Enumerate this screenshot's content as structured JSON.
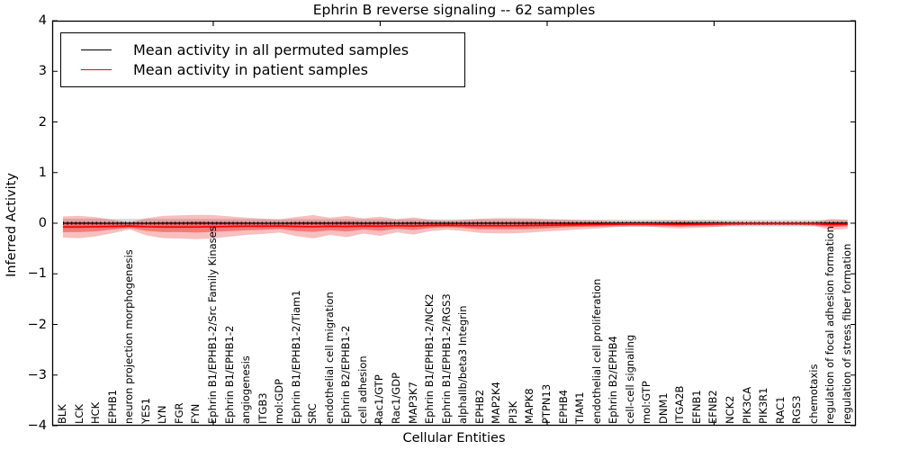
{
  "title": "Ephrin B reverse signaling -- 62 samples",
  "legend": {
    "entries": [
      {
        "label": "Mean activity in all permuted samples",
        "color": "#000000"
      },
      {
        "label": "Mean activity in patient samples",
        "color": "#ff0000"
      }
    ]
  },
  "axes": {
    "xlabel": "Cellular Entities",
    "ylabel": "Inferred Activity",
    "ytick_labels": [
      "4",
      "3",
      "2",
      "1",
      "0",
      "−1",
      "−2",
      "−3",
      "−4"
    ],
    "ylim": [
      -4,
      4
    ]
  },
  "colors": {
    "permuted_line": "#000000",
    "patient_line": "#ff0000",
    "patient_band_outer": "rgba(235,60,60,0.33)",
    "patient_band_inner": "rgba(235,40,40,0.45)",
    "permuted_band": "rgba(120,120,120,0.30)"
  },
  "chart_data": {
    "type": "line",
    "title": "Ephrin B reverse signaling -- 62 samples",
    "xlabel": "Cellular Entities",
    "ylabel": "Inferred Activity",
    "ylim": [
      -4,
      4
    ],
    "yticks": [
      4,
      3,
      2,
      1,
      0,
      -1,
      -2,
      -3,
      -4
    ],
    "xtick_entity_indices": [
      9,
      19,
      29,
      39
    ],
    "legend_position": "upper left",
    "categories": [
      "BLK",
      "LCK",
      "HCK",
      "EPHB1",
      "neuron projection morphogenesis",
      "YES1",
      "LYN",
      "FGR",
      "FYN",
      "Ephrin B1/EPHB1-2/Src Family Kinases",
      "Ephrin B1/EPHB1-2",
      "angiogenesis",
      "ITGB3",
      "mol:GDP",
      "Ephrin B1/EPHB1-2/Tiam1",
      "SRC",
      "endothelial cell migration",
      "Ephrin B2/EPHB1-2",
      "cell adhesion",
      "Rac1/GTP",
      "Rac1/GDP",
      "MAP3K7",
      "Ephrin B1/EPHB1-2/NCK2",
      "Ephrin B1/EPHB1-2/RGS3",
      "alphaIIb/beta3 Integrin",
      "EPHB2",
      "MAP2K4",
      "PI3K",
      "MAPK8",
      "PTPN13",
      "EPHB4",
      "TIAM1",
      "endothelial cell proliferation",
      "Ephrin B2/EPHB4",
      "cell-cell signaling",
      "mol:GTP",
      "DNM1",
      "ITGA2B",
      "EFNB1",
      "EFNB2",
      "NCK2",
      "PIK3CA",
      "PIK3R1",
      "RAC1",
      "RGS3",
      "chemotaxis",
      "regulation of focal adhesion formation",
      "regulation of stress fiber formation"
    ],
    "series": [
      {
        "name": "Mean activity in all permuted samples",
        "values": [
          0,
          0,
          0,
          0,
          0,
          0,
          0,
          0,
          0,
          0,
          0,
          0,
          0,
          0,
          0,
          0,
          0,
          0,
          0,
          0,
          0,
          0,
          0,
          0,
          0,
          0,
          0,
          0,
          0,
          0,
          0,
          0,
          0,
          0,
          0,
          0,
          0,
          0,
          0,
          0,
          0,
          0,
          0,
          0,
          0,
          0,
          0,
          0
        ],
        "band_halfwidth": [
          0.09,
          0.09,
          0.09,
          0.085,
          0.085,
          0.085,
          0.085,
          0.085,
          0.085,
          0.085,
          0.085,
          0.08,
          0.08,
          0.08,
          0.08,
          0.08,
          0.08,
          0.08,
          0.08,
          0.08,
          0.075,
          0.075,
          0.075,
          0.075,
          0.075,
          0.075,
          0.075,
          0.075,
          0.075,
          0.075,
          0.07,
          0.07,
          0.07,
          0.07,
          0.07,
          0.07,
          0.07,
          0.07,
          0.07,
          0.07,
          0.065,
          0.065,
          0.065,
          0.065,
          0.065,
          0.065,
          0.065,
          0.065
        ]
      },
      {
        "name": "Mean activity in patient samples",
        "values": [
          -0.075,
          -0.075,
          -0.07,
          -0.065,
          -0.055,
          -0.07,
          -0.075,
          -0.075,
          -0.075,
          -0.07,
          -0.065,
          -0.06,
          -0.06,
          -0.055,
          -0.065,
          -0.07,
          -0.06,
          -0.065,
          -0.055,
          -0.06,
          -0.05,
          -0.055,
          -0.045,
          -0.04,
          -0.045,
          -0.05,
          -0.05,
          -0.05,
          -0.045,
          -0.04,
          -0.035,
          -0.03,
          -0.025,
          -0.02,
          -0.015,
          -0.015,
          -0.02,
          -0.025,
          -0.02,
          -0.015,
          -0.01,
          -0.008,
          -0.008,
          -0.008,
          -0.008,
          -0.01,
          -0.025,
          -0.02
        ],
        "band_outer_halfwidth": [
          0.21,
          0.22,
          0.19,
          0.13,
          0.07,
          0.17,
          0.22,
          0.23,
          0.24,
          0.23,
          0.2,
          0.17,
          0.15,
          0.13,
          0.19,
          0.23,
          0.17,
          0.21,
          0.15,
          0.19,
          0.13,
          0.17,
          0.11,
          0.09,
          0.11,
          0.14,
          0.15,
          0.15,
          0.14,
          0.12,
          0.11,
          0.09,
          0.08,
          0.06,
          0.05,
          0.05,
          0.07,
          0.08,
          0.07,
          0.06,
          0.04,
          0.03,
          0.03,
          0.03,
          0.03,
          0.04,
          0.11,
          0.09
        ],
        "band_inner_halfwidth": [
          0.1,
          0.1,
          0.09,
          0.06,
          0.04,
          0.08,
          0.1,
          0.1,
          0.11,
          0.1,
          0.09,
          0.08,
          0.07,
          0.06,
          0.09,
          0.1,
          0.08,
          0.1,
          0.07,
          0.09,
          0.06,
          0.08,
          0.05,
          0.04,
          0.05,
          0.07,
          0.07,
          0.07,
          0.07,
          0.06,
          0.05,
          0.04,
          0.04,
          0.03,
          0.03,
          0.03,
          0.03,
          0.04,
          0.03,
          0.03,
          0.02,
          0.02,
          0.02,
          0.02,
          0.02,
          0.02,
          0.05,
          0.04
        ]
      }
    ]
  }
}
